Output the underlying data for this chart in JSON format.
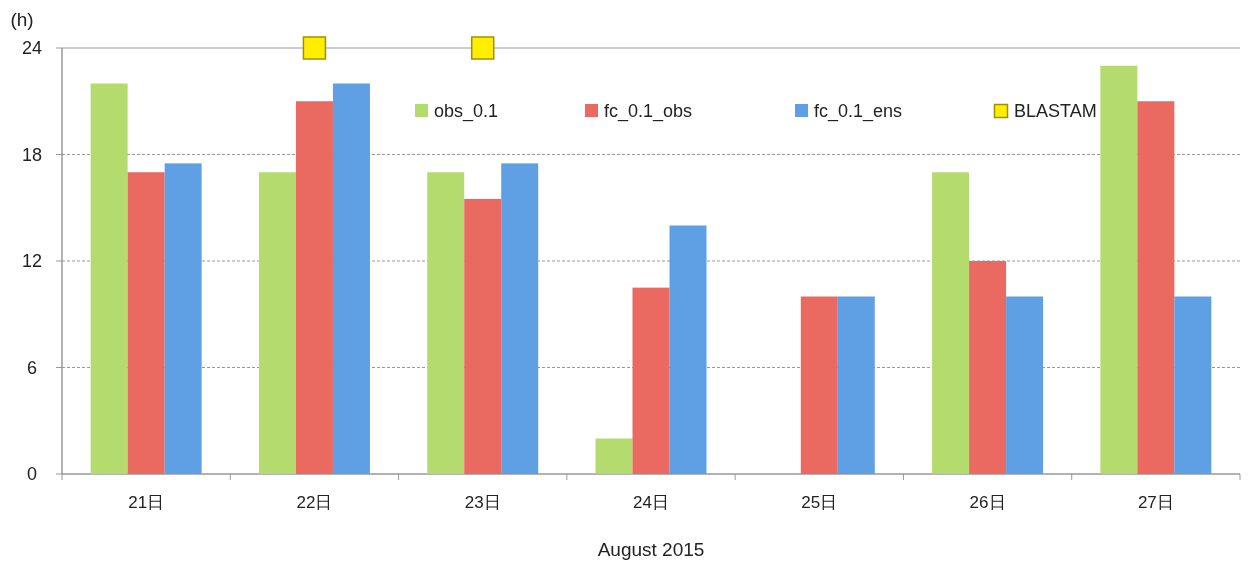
{
  "chart_data": {
    "type": "bar",
    "ylabel": "(h)",
    "xlabel": "August  2015",
    "categories": [
      "21日",
      "22日",
      "23日",
      "24日",
      "25日",
      "26日",
      "27日"
    ],
    "series": [
      {
        "name": "obs_0.1",
        "color": "#b3db6e",
        "values": [
          22,
          17,
          17,
          2,
          0,
          17,
          23
        ]
      },
      {
        "name": "fc_0.1_obs",
        "color": "#ea6a62",
        "values": [
          17,
          21,
          15.5,
          10.5,
          10,
          12,
          21
        ]
      },
      {
        "name": "fc_0.1_ens",
        "color": "#5f9fe3",
        "values": [
          17.5,
          22,
          17.5,
          14,
          10,
          10,
          10
        ]
      },
      {
        "name": "BLASTAM",
        "type": "scatter",
        "color": "#ffee00",
        "x": [
          "22日",
          "23日"
        ],
        "values": [
          24,
          24
        ]
      }
    ],
    "ylim": [
      0,
      24
    ],
    "yticks": [
      0,
      6,
      12,
      18,
      24
    ],
    "grid": "y",
    "legend": "top right",
    "marker": "square"
  }
}
